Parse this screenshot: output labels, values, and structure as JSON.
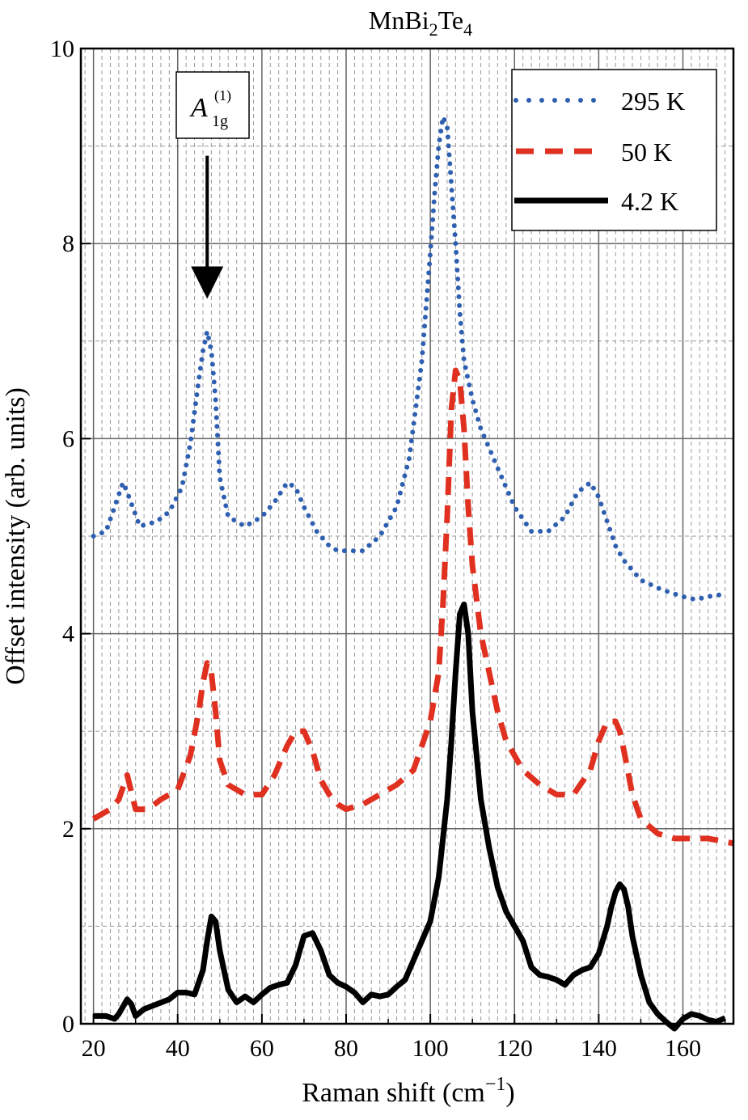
{
  "chart_data": {
    "type": "line",
    "title": {
      "main": "MnBi",
      "sub1": "2",
      "mid": "Te",
      "sub2": "4"
    },
    "xlabel": {
      "main": "Raman shift (cm",
      "sup": "−1",
      "end": ")"
    },
    "ylabel": "Offset intensity (arb. units)",
    "xlim": [
      17,
      172
    ],
    "ylim": [
      0,
      10
    ],
    "xticks": [
      20,
      40,
      60,
      80,
      100,
      120,
      140,
      160
    ],
    "yticks": [
      0,
      2,
      4,
      6,
      8,
      10
    ],
    "grid": true,
    "legend_position": "top-right",
    "annotation": {
      "base": "A",
      "sub": "1g",
      "sup": "(1)",
      "arrow_x": 47,
      "arrow_from_y": 8.9,
      "arrow_to_y": 7.6
    },
    "colors": {
      "blue": "#2e5fb0",
      "red": "#e03020",
      "black": "#000000"
    },
    "series": [
      {
        "name": "295 K",
        "style": "dotted",
        "color": "#2e5fb0",
        "x": [
          20,
          23,
          25,
          27,
          28,
          31,
          35,
          38,
          41,
          43,
          45,
          46,
          47,
          48,
          49,
          50,
          52,
          56,
          60,
          63,
          66,
          68,
          70,
          73,
          76,
          78,
          80,
          84,
          88,
          92,
          95,
          98,
          100,
          101,
          102,
          103,
          104,
          105,
          106,
          107,
          108,
          110,
          112,
          116,
          120,
          124,
          128,
          132,
          135,
          138,
          140,
          142,
          144,
          146,
          150,
          155,
          160,
          163,
          166,
          169
        ],
        "y": [
          5.0,
          5.05,
          5.3,
          5.55,
          5.45,
          5.1,
          5.15,
          5.25,
          5.5,
          5.95,
          6.6,
          6.9,
          7.1,
          6.9,
          6.4,
          5.6,
          5.2,
          5.1,
          5.2,
          5.35,
          5.55,
          5.5,
          5.3,
          5.05,
          4.9,
          4.85,
          4.85,
          4.85,
          5.0,
          5.3,
          5.8,
          6.8,
          7.9,
          8.5,
          9.0,
          9.3,
          9.2,
          8.6,
          8.0,
          7.3,
          6.8,
          6.4,
          6.1,
          5.7,
          5.3,
          5.05,
          5.05,
          5.2,
          5.45,
          5.55,
          5.4,
          5.15,
          4.9,
          4.75,
          4.55,
          4.45,
          4.38,
          4.35,
          4.38,
          4.4
        ]
      },
      {
        "name": "50 K",
        "style": "dashed",
        "color": "#e03020",
        "x": [
          20,
          24,
          26,
          28,
          30,
          33,
          36,
          40,
          43,
          45,
          46,
          47,
          48,
          49,
          50,
          52,
          56,
          60,
          63,
          66,
          68,
          70,
          72,
          74,
          76,
          78,
          80,
          84,
          88,
          92,
          96,
          100,
          102,
          103,
          104,
          105,
          106,
          107,
          108,
          109,
          110,
          112,
          114,
          116,
          118,
          122,
          126,
          130,
          134,
          138,
          140,
          142,
          144,
          145,
          146,
          148,
          150,
          154,
          158,
          162,
          166,
          172
        ],
        "y": [
          2.1,
          2.2,
          2.3,
          2.55,
          2.2,
          2.2,
          2.3,
          2.4,
          2.75,
          3.2,
          3.5,
          3.7,
          3.6,
          3.2,
          2.7,
          2.45,
          2.35,
          2.35,
          2.55,
          2.85,
          3.0,
          3.0,
          2.8,
          2.5,
          2.35,
          2.25,
          2.2,
          2.25,
          2.35,
          2.45,
          2.6,
          3.1,
          3.6,
          4.3,
          5.2,
          6.3,
          6.7,
          6.6,
          6.1,
          5.3,
          4.7,
          4.0,
          3.6,
          3.2,
          2.9,
          2.6,
          2.45,
          2.35,
          2.35,
          2.6,
          2.9,
          3.1,
          3.1,
          3.0,
          2.8,
          2.35,
          2.1,
          1.95,
          1.9,
          1.9,
          1.9,
          1.85
        ]
      },
      {
        "name": "4.2 K",
        "style": "solid",
        "color": "#000000",
        "x": [
          20,
          23,
          25,
          26,
          28,
          29,
          30,
          32,
          35,
          38,
          40,
          42,
          44,
          46,
          47,
          48,
          49,
          50,
          52,
          54,
          56,
          58,
          60,
          62,
          64,
          66,
          68,
          70,
          72,
          74,
          76,
          78,
          80,
          82,
          84,
          86,
          88,
          90,
          92,
          94,
          96,
          98,
          100,
          102,
          104,
          105,
          106,
          107,
          108,
          109,
          110,
          112,
          114,
          116,
          118,
          120,
          122,
          124,
          126,
          128,
          130,
          132,
          134,
          136,
          138,
          140,
          142,
          143,
          144,
          145,
          146,
          147,
          148,
          150,
          152,
          154,
          156,
          158,
          160,
          162,
          164,
          166,
          168,
          170
        ],
        "y": [
          0.08,
          0.08,
          0.05,
          0.1,
          0.25,
          0.2,
          0.08,
          0.15,
          0.2,
          0.25,
          0.32,
          0.32,
          0.3,
          0.55,
          0.85,
          1.1,
          1.05,
          0.75,
          0.35,
          0.22,
          0.28,
          0.22,
          0.3,
          0.37,
          0.4,
          0.42,
          0.6,
          0.9,
          0.93,
          0.75,
          0.5,
          0.42,
          0.38,
          0.32,
          0.22,
          0.3,
          0.28,
          0.3,
          0.38,
          0.45,
          0.65,
          0.85,
          1.05,
          1.5,
          2.3,
          2.9,
          3.6,
          4.2,
          4.3,
          4.0,
          3.2,
          2.3,
          1.8,
          1.4,
          1.15,
          1.0,
          0.85,
          0.58,
          0.5,
          0.48,
          0.45,
          0.4,
          0.5,
          0.55,
          0.58,
          0.72,
          1.0,
          1.2,
          1.35,
          1.43,
          1.38,
          1.2,
          0.9,
          0.5,
          0.22,
          0.1,
          0.02,
          -0.05,
          0.05,
          0.1,
          0.08,
          0.04,
          0.02,
          0.06
        ]
      }
    ]
  }
}
